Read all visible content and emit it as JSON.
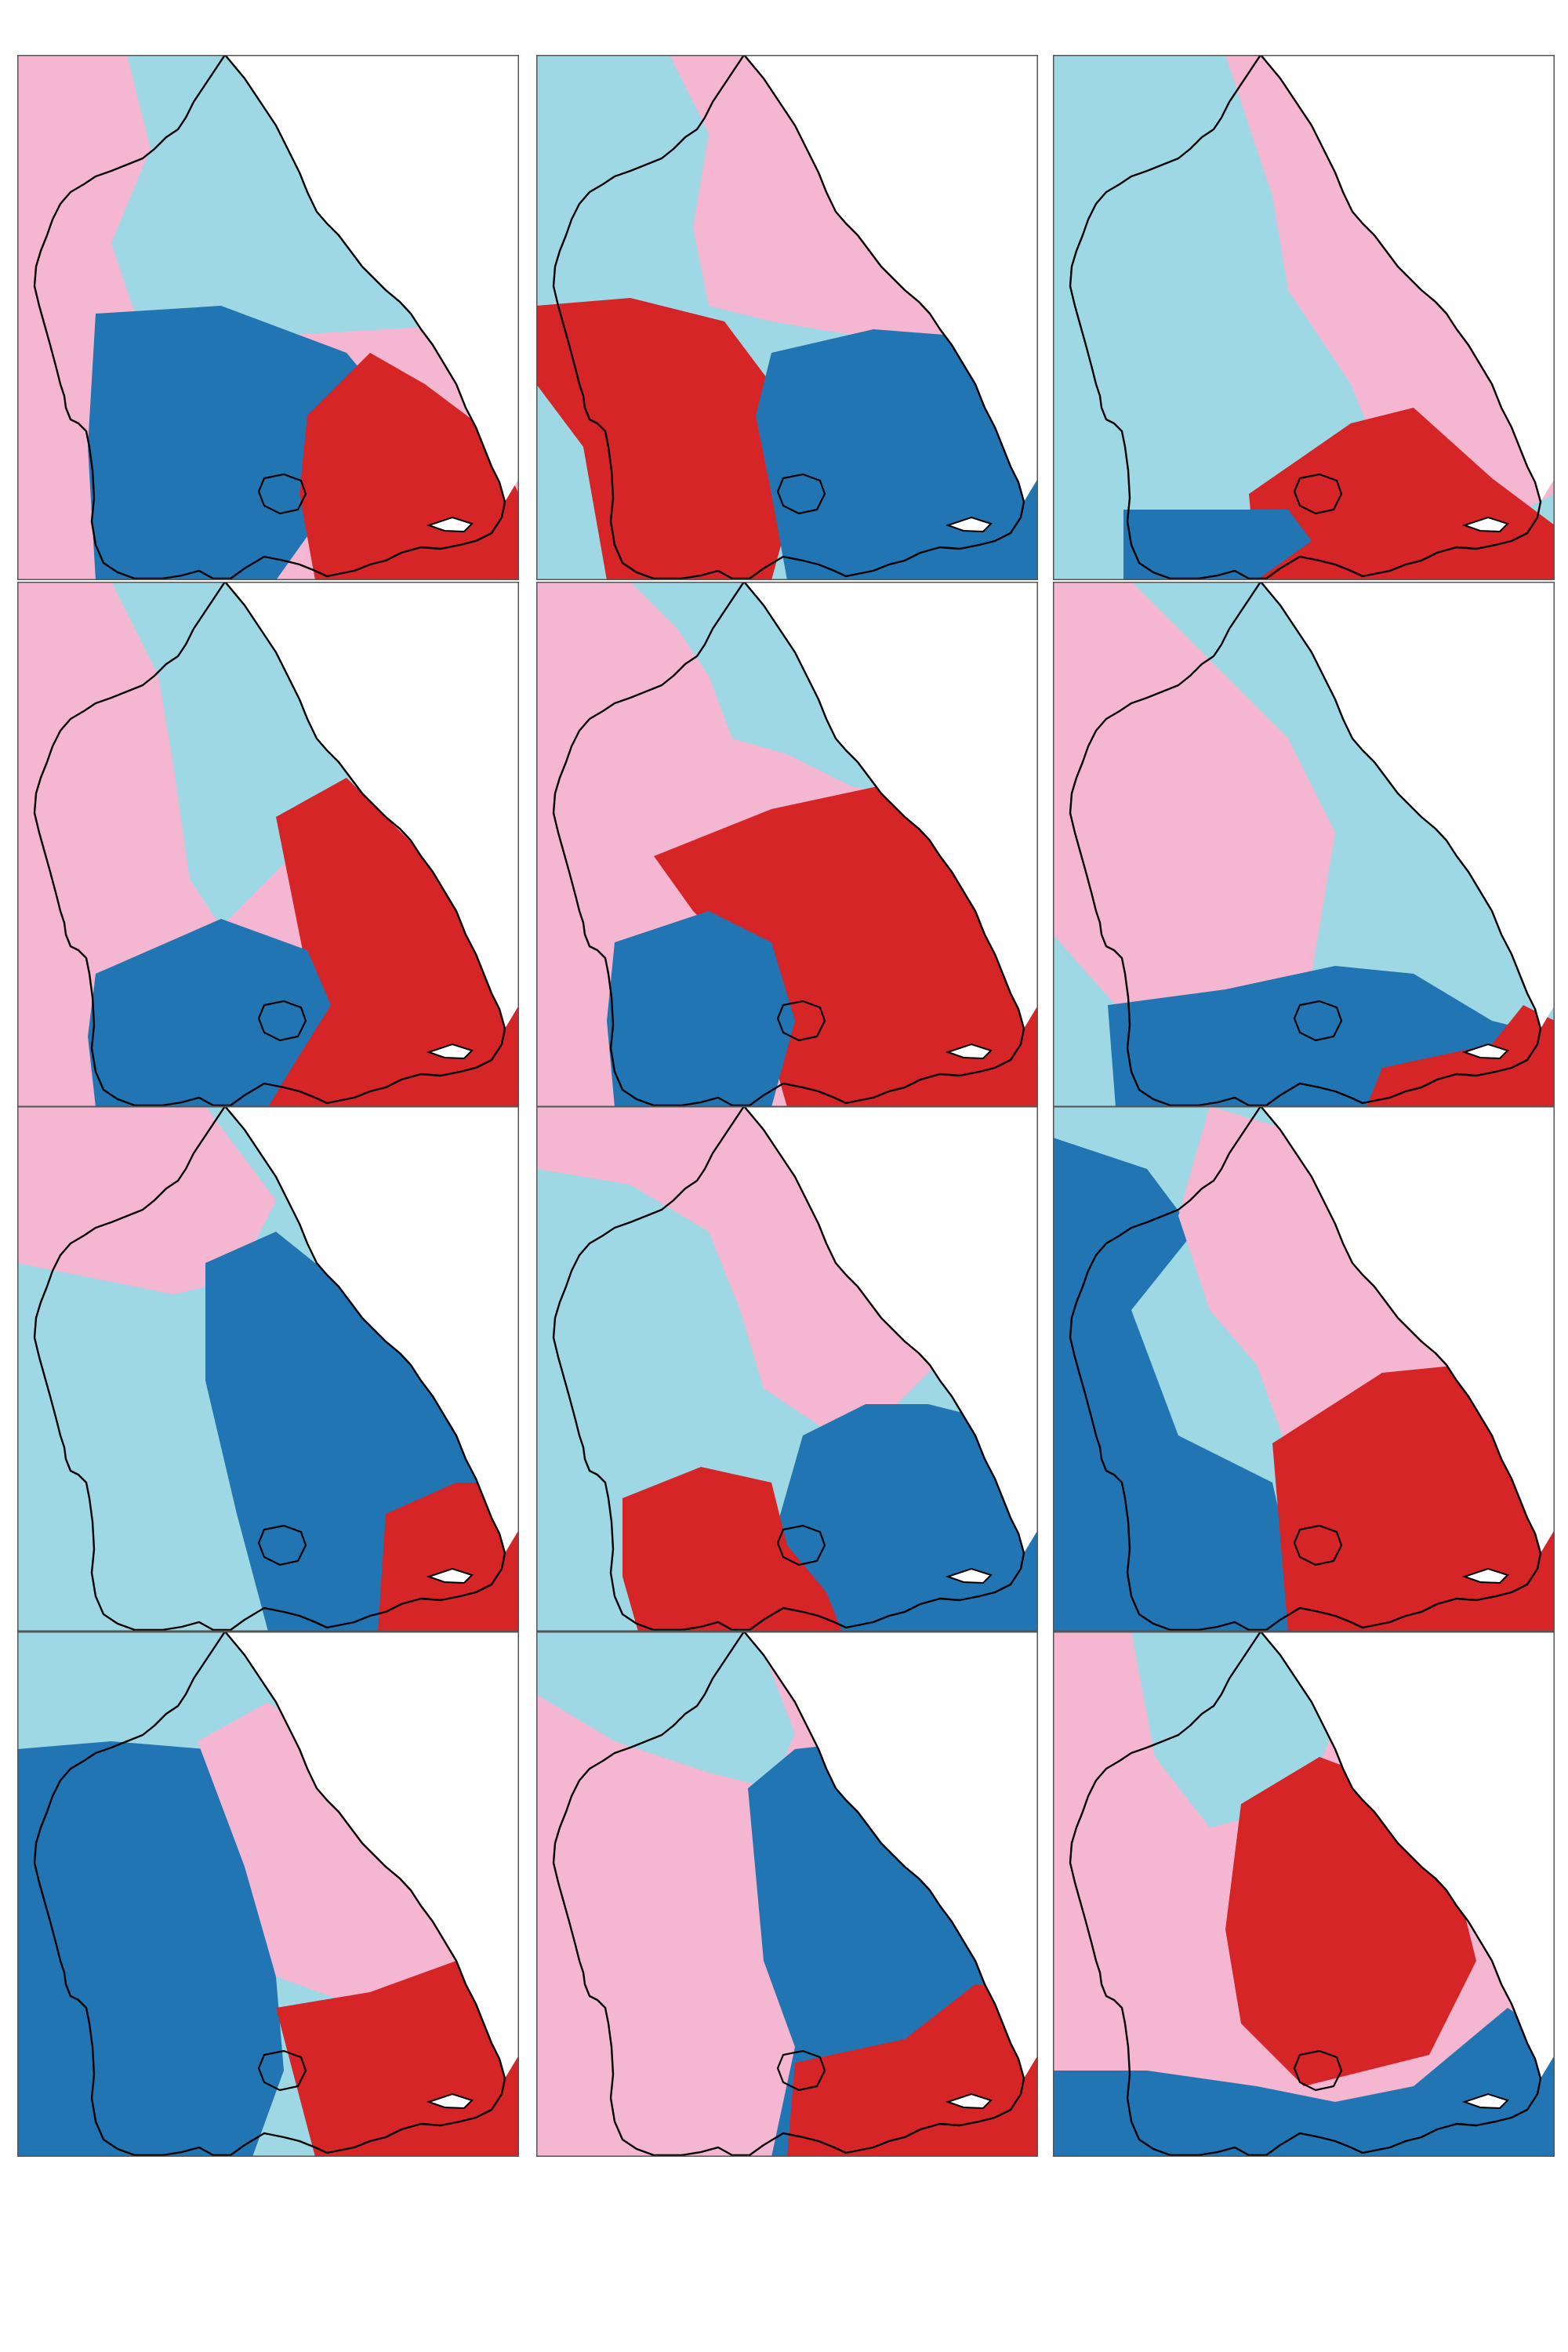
{
  "figure": {
    "type": "map-small-multiples",
    "layout": {
      "rows": 4,
      "columns": 3
    },
    "region_outline": "black",
    "panels": [
      {
        "id": 1,
        "zone_colors": [
          "#f4b6d0",
          "#9fd8e5",
          "#2175b2",
          "#d62527"
        ]
      },
      {
        "id": 2,
        "zone_colors": [
          "#9fd8e5",
          "#f4b6d0",
          "#d62527",
          "#2175b2"
        ]
      },
      {
        "id": 3,
        "zone_colors": [
          "#9fd8e5",
          "#f4b6d0",
          "#d62527",
          "#2175b2"
        ]
      },
      {
        "id": 4,
        "zone_colors": [
          "#f4b6d0",
          "#9fd8e5",
          "#d62527",
          "#2175b2"
        ]
      },
      {
        "id": 5,
        "zone_colors": [
          "#f4b6d0",
          "#9fd8e5",
          "#d62527",
          "#2175b2"
        ]
      },
      {
        "id": 6,
        "zone_colors": [
          "#9fd8e5",
          "#f4b6d0",
          "#2175b2",
          "#d62527"
        ]
      },
      {
        "id": 7,
        "zone_colors": [
          "#9fd8e5",
          "#f4b6d0",
          "#2175b2",
          "#d62527"
        ]
      },
      {
        "id": 8,
        "zone_colors": [
          "#9fd8e5",
          "#f4b6d0",
          "#2175b2",
          "#d62527"
        ]
      },
      {
        "id": 9,
        "zone_colors": [
          "#9fd8e5",
          "#2175b2",
          "#f4b6d0",
          "#d62527"
        ]
      },
      {
        "id": 10,
        "zone_colors": [
          "#9fd8e5",
          "#2175b2",
          "#f4b6d0",
          "#d62527"
        ]
      },
      {
        "id": 11,
        "zone_colors": [
          "#f4b6d0",
          "#9fd8e5",
          "#2175b2",
          "#d62527"
        ]
      },
      {
        "id": 12,
        "zone_colors": [
          "#f4b6d0",
          "#9fd8e5",
          "#d62527",
          "#2175b2"
        ]
      }
    ]
  },
  "colors": {
    "light_blue": "#9fd8e5",
    "pink": "#f4b6d0",
    "dark_blue": "#2175b2",
    "red": "#d62527",
    "frame": "#555555",
    "outline": "#000000"
  }
}
